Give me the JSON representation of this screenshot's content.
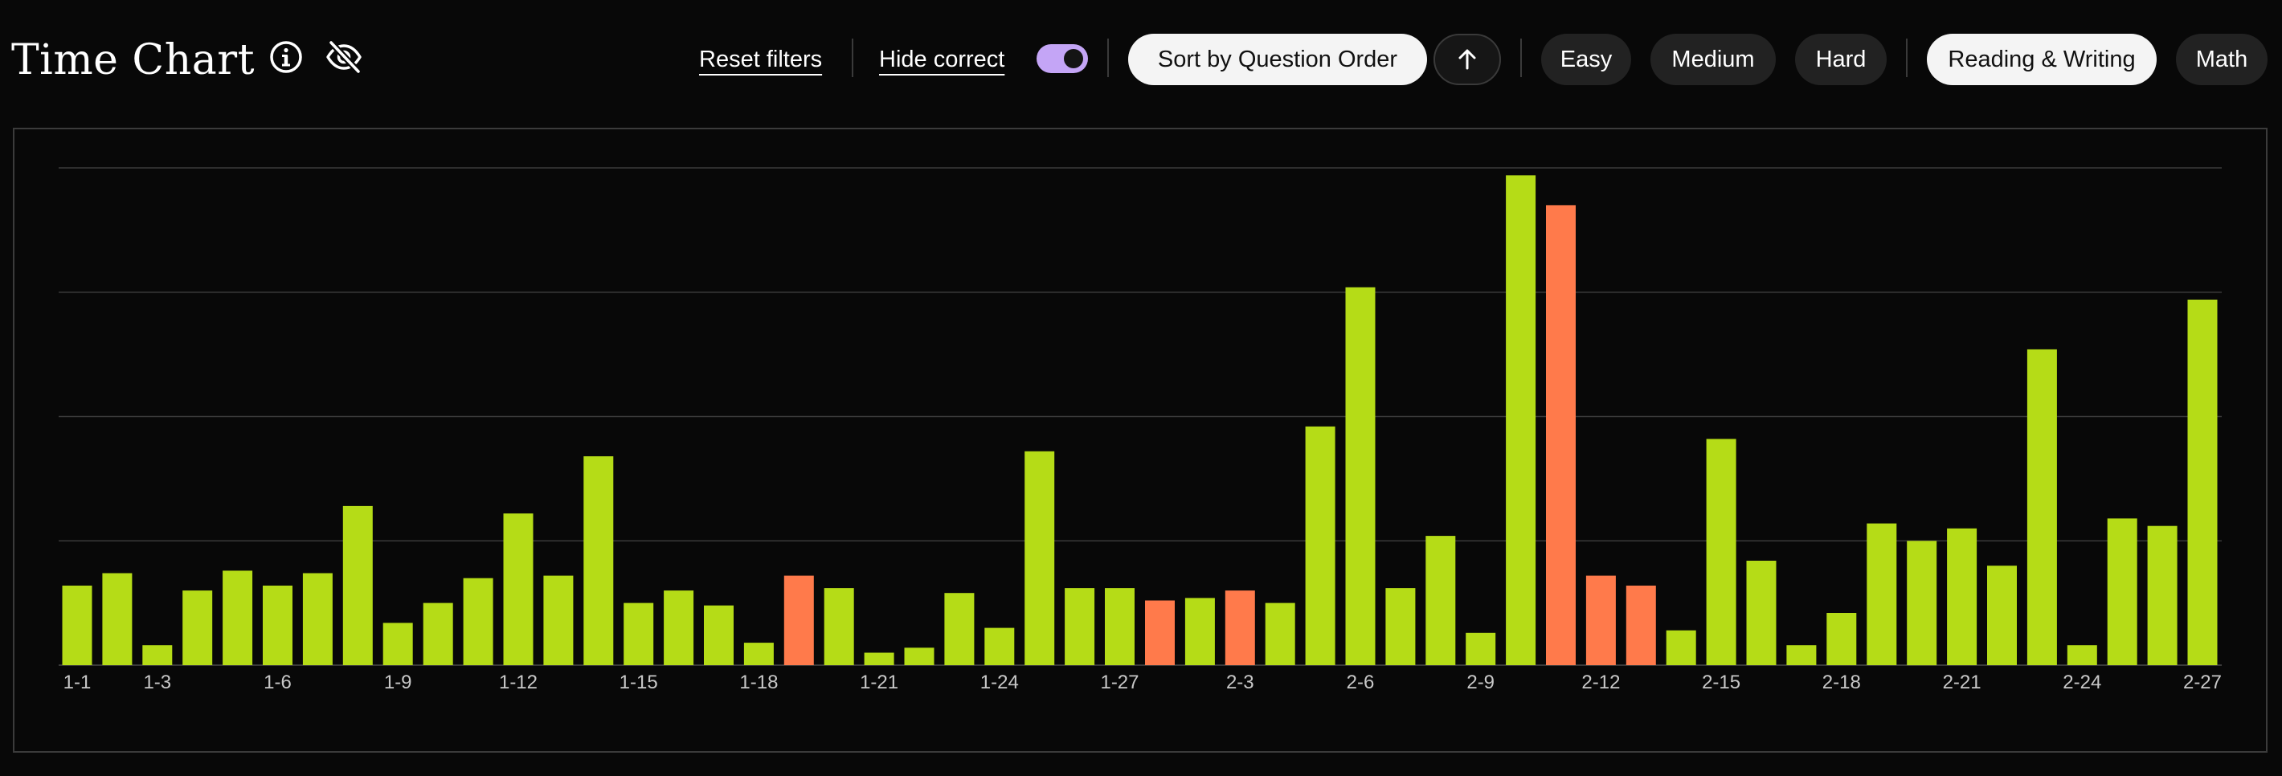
{
  "header": {
    "title": "Time Chart",
    "info_icon": "info-icon",
    "visibility_icon": "eye-off-icon",
    "reset_filters": "Reset filters",
    "hide_correct": "Hide correct",
    "hide_correct_enabled": true,
    "sort_label": "Sort by Question Order",
    "sort_direction_icon": "arrow-up-icon",
    "difficulty_filters": [
      "Easy",
      "Medium",
      "Hard"
    ],
    "section_filters": [
      {
        "label": "Reading & Writing",
        "active": true
      },
      {
        "label": "Math",
        "active": false
      }
    ]
  },
  "colors": {
    "correct": "#b5dc17",
    "incorrect": "#ff7a4b",
    "grid": "#3a3a3a",
    "tick_label": "#c8c8c8",
    "accent_toggle": "#c4a5f6"
  },
  "chart_data": {
    "type": "bar",
    "grid": true,
    "ylim": [
      0,
      100
    ],
    "gridlines": [
      0,
      25,
      50,
      75,
      100
    ],
    "categories": [
      "1-1",
      "1-2",
      "1-3",
      "1-4",
      "1-5",
      "1-6",
      "1-7",
      "1-8",
      "1-9",
      "1-10",
      "1-11",
      "1-12",
      "1-13",
      "1-14",
      "1-15",
      "1-16",
      "1-17",
      "1-18",
      "1-19",
      "1-20",
      "1-21",
      "1-22",
      "1-23",
      "1-24",
      "1-25",
      "1-26",
      "1-27",
      "2-1",
      "2-2",
      "2-3",
      "2-4",
      "2-5",
      "2-6",
      "2-7",
      "2-8",
      "2-9",
      "2-10",
      "2-11",
      "2-12",
      "2-13",
      "2-14",
      "2-15",
      "2-16",
      "2-17",
      "2-18",
      "2-19",
      "2-20",
      "2-21",
      "2-22",
      "2-23",
      "2-24",
      "2-25",
      "2-26",
      "2-27"
    ],
    "tick_labels": [
      "1-1",
      "1-3",
      "1-6",
      "1-9",
      "1-12",
      "1-15",
      "1-18",
      "1-21",
      "1-24",
      "1-27",
      "2-3",
      "2-6",
      "2-9",
      "2-12",
      "2-15",
      "2-18",
      "2-21",
      "2-24",
      "2-27"
    ],
    "values": [
      16,
      18.5,
      4,
      15,
      19,
      16,
      18.5,
      32,
      8.5,
      12.5,
      17.5,
      30.5,
      18,
      42,
      12.5,
      15,
      12,
      4.5,
      18,
      15.5,
      2.5,
      3.5,
      14.5,
      7.5,
      43,
      15.5,
      15.5,
      13,
      13.5,
      15,
      12.5,
      48,
      76,
      15.5,
      26,
      6.5,
      98.5,
      92.5,
      18,
      16,
      7,
      45.5,
      21,
      4,
      10.5,
      28.5,
      25,
      27.5,
      20,
      63.5,
      4,
      29.5,
      28,
      73.5
    ],
    "status": [
      "correct",
      "correct",
      "correct",
      "correct",
      "correct",
      "correct",
      "correct",
      "correct",
      "correct",
      "correct",
      "correct",
      "correct",
      "correct",
      "correct",
      "correct",
      "correct",
      "correct",
      "correct",
      "incorrect",
      "correct",
      "correct",
      "correct",
      "correct",
      "correct",
      "correct",
      "correct",
      "correct",
      "incorrect",
      "correct",
      "incorrect",
      "correct",
      "correct",
      "correct",
      "correct",
      "correct",
      "correct",
      "correct",
      "incorrect",
      "incorrect",
      "incorrect",
      "correct",
      "correct",
      "correct",
      "correct",
      "correct",
      "correct",
      "correct",
      "correct",
      "correct",
      "correct",
      "correct",
      "correct",
      "correct",
      "correct"
    ]
  }
}
